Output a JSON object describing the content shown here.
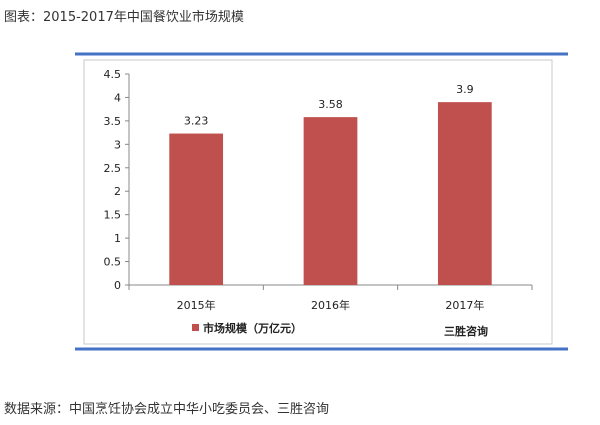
{
  "caption": "图表：2015-2017年中国餐饮业市场规模",
  "source": "数据来源：中国烹饪协会成立中华小吃委员会、三胜咨询",
  "watermark": "三胜咨询",
  "colors": {
    "bar": "#c0504d",
    "rule": "#4472c4"
  },
  "chart_data": {
    "type": "bar",
    "categories": [
      "2015年",
      "2016年",
      "2017年"
    ],
    "series": [
      {
        "name": "市场规模（万亿元）",
        "values": [
          3.23,
          3.58,
          3.9
        ]
      }
    ],
    "data_labels": [
      "3.23",
      "3.58",
      "3.9"
    ],
    "ylim": [
      0,
      4.5
    ],
    "yticks": [
      0,
      0.5,
      1,
      1.5,
      2,
      2.5,
      3,
      3.5,
      4,
      4.5
    ],
    "ytick_labels": [
      "0",
      "0.5",
      "1",
      "1.5",
      "2",
      "2.5",
      "3",
      "3.5",
      "4",
      "4.5"
    ],
    "grid": false,
    "legend_position": "bottom"
  }
}
